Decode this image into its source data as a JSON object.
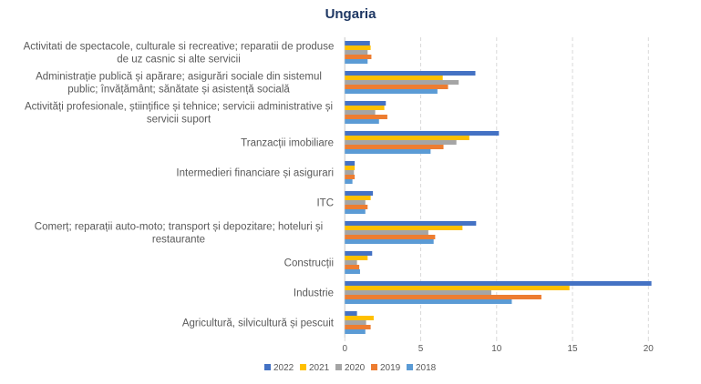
{
  "chart_data": {
    "type": "bar",
    "orientation": "horizontal",
    "title": "Ungaria",
    "xlabel": "",
    "ylabel": "",
    "xlim": [
      0,
      20
    ],
    "xticks": [
      0,
      5,
      10,
      15,
      20
    ],
    "grid": true,
    "legend_position": "bottom",
    "categories": [
      [
        "Activitati de spectacole, culturale si recreative; reparatii de produse",
        "de uz casnic si alte servicii"
      ],
      [
        "Administrație publică și apărare; asigurări sociale din sistemul",
        "public; învățământ; sănătate și asistență socială"
      ],
      [
        "Activități profesionale, științifice și tehnice; servicii administrative și",
        "servicii suport"
      ],
      [
        "Tranzacții imobiliare"
      ],
      [
        "Intermedieri financiare și asigurari"
      ],
      [
        "ITC"
      ],
      [
        "Comerț; reparații auto-moto; transport și depozitare; hoteluri și",
        "restaurante"
      ],
      [
        "Construcții"
      ],
      [
        "Industrie"
      ],
      [
        "Agricultură, silvicultură și pescuit"
      ]
    ],
    "series": [
      {
        "name": "2022",
        "color": "#4472C4",
        "values": [
          1.65,
          8.6,
          2.7,
          10.15,
          0.65,
          1.85,
          8.65,
          1.8,
          20.2,
          0.8
        ]
      },
      {
        "name": "2021",
        "color": "#FFC000",
        "values": [
          1.7,
          6.45,
          2.6,
          8.2,
          0.65,
          1.7,
          7.75,
          1.5,
          14.8,
          1.9
        ]
      },
      {
        "name": "2020",
        "color": "#A5A5A5",
        "values": [
          1.5,
          7.5,
          2.0,
          7.35,
          0.6,
          1.35,
          5.5,
          0.8,
          9.65,
          1.4
        ]
      },
      {
        "name": "2019",
        "color": "#ED7D31",
        "values": [
          1.75,
          6.8,
          2.8,
          6.5,
          0.65,
          1.5,
          5.95,
          0.95,
          12.95,
          1.7
        ]
      },
      {
        "name": "2018",
        "color": "#5B9BD5",
        "values": [
          1.5,
          6.1,
          2.25,
          5.65,
          0.5,
          1.35,
          5.85,
          1.0,
          11.0,
          1.35
        ]
      }
    ]
  }
}
